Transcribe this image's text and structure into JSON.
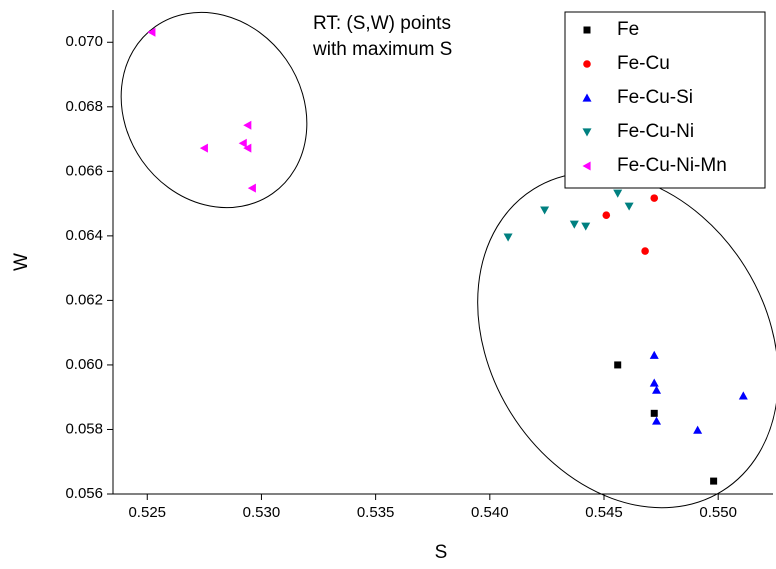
{
  "chart_data": {
    "type": "scatter",
    "annotation": [
      "RT: (S,W) points",
      "with maximum S"
    ],
    "x_label": "S",
    "y_label": "W",
    "xlim": [
      0.5235,
      0.5524
    ],
    "xticks": [
      0.525,
      {
        "value": 0.53,
        "label": "0.530"
      },
      0.535,
      {
        "value": 0.54,
        "label": "0.540"
      },
      0.545,
      {
        "value": 0.55,
        "label": "0.550"
      }
    ],
    "ylim": [
      0.056,
      0.071
    ],
    "yticks": [
      0.056,
      0.058,
      {
        "value": 0.06,
        "label": "0.060"
      },
      0.062,
      0.064,
      0.066,
      0.068,
      {
        "value": 0.07,
        "label": "0.070"
      }
    ],
    "legend": "top-right",
    "series": [
      {
        "name": "Fe",
        "color": "#000000",
        "marker": "square",
        "x": [
          0.5456,
          0.5472,
          0.5498
        ],
        "values": [
          0.06,
          0.0585,
          0.0564
        ]
      },
      {
        "name": "Fe-Cu",
        "color": "#ff0000",
        "marker": "circle",
        "x": [
          0.5472,
          0.5451,
          0.5468
        ],
        "values": [
          0.06517,
          0.06464,
          0.06353
        ]
      },
      {
        "name": "Fe-Cu-Si",
        "color": "#0000ff",
        "marker": "triangle-up",
        "x": [
          0.5472,
          0.5472,
          0.5473,
          0.5473,
          0.5491,
          0.5511
        ],
        "values": [
          0.0603,
          0.05944,
          0.05922,
          0.05826,
          0.05798,
          0.05904
        ]
      },
      {
        "name": "Fe-Cu-Ni",
        "color": "#008080",
        "marker": "triangle-down",
        "x": [
          0.5408,
          0.5424,
          0.5437,
          0.5442,
          0.5456,
          0.5461
        ],
        "values": [
          0.06396,
          0.0648,
          0.06436,
          0.0643,
          0.06532,
          0.06492
        ]
      },
      {
        "name": "Fe-Cu-Ni-Mn",
        "color": "#ff00ff",
        "marker": "triangle-left",
        "x": [
          0.5252,
          0.5275,
          0.5292,
          0.5294,
          0.5294,
          0.5296
        ],
        "values": [
          0.07031,
          0.06672,
          0.06687,
          0.06743,
          0.06672,
          0.06548
        ]
      }
    ]
  }
}
